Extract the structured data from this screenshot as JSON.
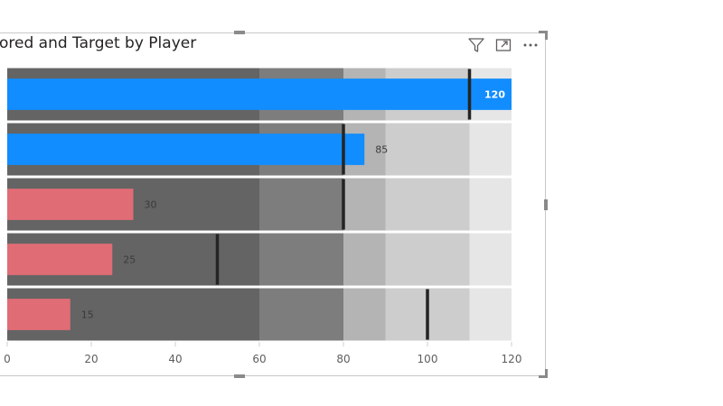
{
  "visual": {
    "title": "ored and Target by Player",
    "toolbar": {
      "filter_icon": "filter-icon",
      "focus_icon": "focus-mode-icon",
      "more_icon": "more-options-icon"
    }
  },
  "colors": {
    "band_0_60": "#646464",
    "band_60_80": "#7d7d7d",
    "band_80_90": "#b4b4b4",
    "band_90_110": "#cdcdcd",
    "band_110_120": "#e6e6e6",
    "bar_above_target": "#118dff",
    "bar_below_target": "#e06c75",
    "target_marker": "#252423",
    "data_label_dark": "#3a3a3a",
    "data_label_light": "#ffffff"
  },
  "chart_data": {
    "type": "bar",
    "orientation": "horizontal",
    "subtype": "bullet",
    "title": "ored and Target by Player",
    "xlim": [
      0,
      120
    ],
    "x_ticks": [
      "0",
      "20",
      "40",
      "60",
      "80",
      "100",
      "120"
    ],
    "x_tick_values": [
      0,
      20,
      40,
      60,
      80,
      100,
      120
    ],
    "bands": [
      {
        "from": 0,
        "to": 60
      },
      {
        "from": 60,
        "to": 80
      },
      {
        "from": 80,
        "to": 90
      },
      {
        "from": 90,
        "to": 110
      },
      {
        "from": 110,
        "to": 120
      }
    ],
    "values": [
      120,
      85,
      30,
      25,
      15
    ],
    "value_labels": [
      "120",
      "85",
      "30",
      "25",
      "15"
    ],
    "targets": [
      110,
      80,
      80,
      50,
      100
    ],
    "grid": false,
    "legend": "none"
  }
}
